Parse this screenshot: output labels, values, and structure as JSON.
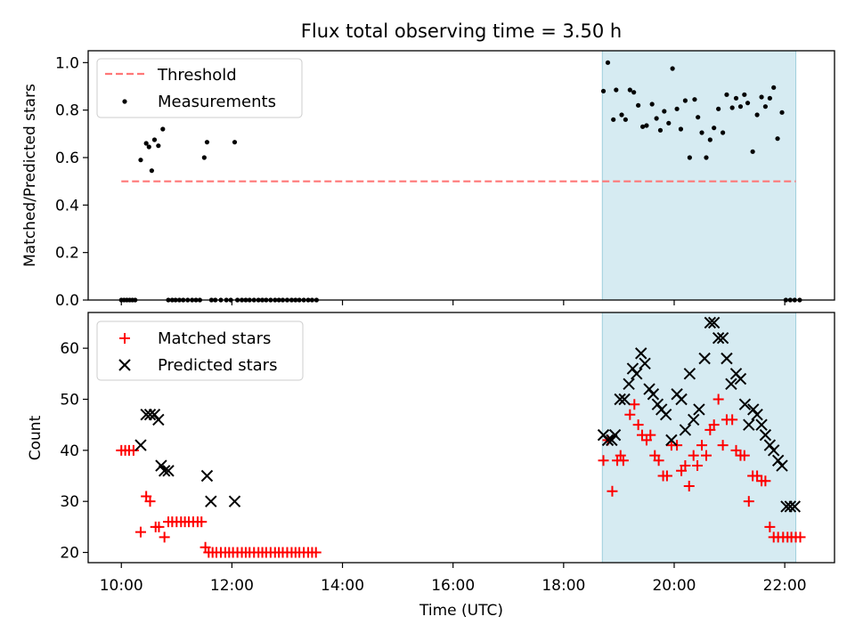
{
  "chart_data": {
    "type": "scatter",
    "title": "Flux total observing time = 3.50 h",
    "xlabel": "Time (UTC)",
    "x_unit": "hours UTC",
    "xlim": [
      9.4,
      22.9
    ],
    "x_ticks": [
      10,
      12,
      14,
      16,
      18,
      20,
      22
    ],
    "x_tick_labels": [
      "10:00",
      "12:00",
      "14:00",
      "16:00",
      "18:00",
      "20:00",
      "22:00"
    ],
    "highlight_span": {
      "x": [
        18.7,
        22.2
      ],
      "color": "#add8e6"
    },
    "panels": [
      {
        "ylabel": "Matched/Predicted stars",
        "ylim": [
          0,
          1.05
        ],
        "y_ticks": [
          0.0,
          0.2,
          0.4,
          0.6,
          0.8,
          1.0
        ],
        "y_tick_labels": [
          "0.0",
          "0.2",
          "0.4",
          "0.6",
          "0.8",
          "1.0"
        ],
        "legend_position": "upper-left",
        "series": [
          {
            "name": "Threshold",
            "kind": "dashed-line",
            "color": "#ff7777",
            "x": [
              10.0,
              22.2
            ],
            "y": [
              0.5,
              0.5
            ]
          },
          {
            "name": "Measurements",
            "kind": "dot",
            "color": "#000000",
            "x": [
              10.0,
              10.05,
              10.1,
              10.15,
              10.2,
              10.25,
              10.35,
              10.45,
              10.5,
              10.55,
              10.6,
              10.67,
              10.75,
              10.85,
              10.92,
              10.98,
              11.05,
              11.12,
              11.2,
              11.28,
              11.35,
              11.42,
              11.5,
              11.55,
              11.63,
              11.7,
              11.8,
              11.9,
              11.98,
              12.05,
              12.1,
              12.18,
              12.25,
              12.32,
              12.4,
              12.48,
              12.55,
              12.62,
              12.7,
              12.78,
              12.85,
              12.92,
              13.0,
              13.08,
              13.15,
              13.22,
              13.3,
              13.38,
              13.45,
              13.53,
              18.72,
              18.8,
              18.9,
              18.95,
              19.05,
              19.12,
              19.2,
              19.27,
              19.35,
              19.43,
              19.5,
              19.6,
              19.68,
              19.75,
              19.82,
              19.9,
              19.97,
              20.05,
              20.12,
              20.2,
              20.28,
              20.37,
              20.43,
              20.5,
              20.58,
              20.65,
              20.72,
              20.8,
              20.88,
              20.95,
              21.05,
              21.12,
              21.2,
              21.27,
              21.33,
              21.42,
              21.5,
              21.58,
              21.65,
              21.73,
              21.8,
              21.87,
              21.95,
              22.02,
              22.1,
              22.18,
              22.27
            ],
            "y": [
              0,
              0,
              0,
              0,
              0,
              0,
              0.59,
              0.66,
              0.645,
              0.545,
              0.675,
              0.65,
              0.72,
              0,
              0,
              0,
              0,
              0,
              0,
              0,
              0,
              0,
              0.6,
              0.665,
              0,
              0,
              0,
              0,
              0,
              0.665,
              0,
              0,
              0,
              0,
              0,
              0,
              0,
              0,
              0,
              0,
              0,
              0,
              0,
              0,
              0,
              0,
              0,
              0,
              0,
              0,
              0.88,
              1.0,
              0.76,
              0.885,
              0.78,
              0.76,
              0.885,
              0.875,
              0.82,
              0.73,
              0.735,
              0.825,
              0.765,
              0.715,
              0.795,
              0.745,
              0.975,
              0.805,
              0.72,
              0.84,
              0.6,
              0.845,
              0.77,
              0.705,
              0.6,
              0.675,
              0.725,
              0.805,
              0.705,
              0.865,
              0.81,
              0.85,
              0.815,
              0.865,
              0.83,
              0.625,
              0.78,
              0.855,
              0.815,
              0.85,
              0.895,
              0.68,
              0.79,
              0.0,
              0.0,
              0.0,
              0.0
            ]
          }
        ]
      },
      {
        "ylabel": "Count",
        "ylim": [
          18,
          67
        ],
        "y_ticks": [
          20,
          30,
          40,
          50,
          60
        ],
        "y_tick_labels": [
          "20",
          "30",
          "40",
          "50",
          "60"
        ],
        "legend_position": "upper-left",
        "series": [
          {
            "name": "Matched stars",
            "kind": "plus",
            "color": "#ff0000",
            "x": [
              10.0,
              10.07,
              10.14,
              10.22,
              10.35,
              10.45,
              10.52,
              10.62,
              10.68,
              10.78,
              10.85,
              10.92,
              11.0,
              11.08,
              11.15,
              11.22,
              11.3,
              11.38,
              11.45,
              11.52,
              11.58,
              11.65,
              11.72,
              11.8,
              11.88,
              11.95,
              12.02,
              12.1,
              12.18,
              12.25,
              12.32,
              12.4,
              12.48,
              12.55,
              12.62,
              12.7,
              12.78,
              12.85,
              12.92,
              13.0,
              13.08,
              13.15,
              13.22,
              13.3,
              13.38,
              13.45,
              13.52,
              18.72,
              18.8,
              18.88,
              18.97,
              19.03,
              19.08,
              19.2,
              19.28,
              19.35,
              19.42,
              19.5,
              19.57,
              19.65,
              19.72,
              19.8,
              19.87,
              19.95,
              20.05,
              20.13,
              20.2,
              20.27,
              20.35,
              20.42,
              20.5,
              20.58,
              20.65,
              20.72,
              20.8,
              20.88,
              20.95,
              21.05,
              21.12,
              21.2,
              21.27,
              21.35,
              21.42,
              21.5,
              21.58,
              21.65,
              21.73,
              21.8,
              21.88,
              21.97,
              22.05,
              22.12,
              22.2,
              22.28
            ],
            "y": [
              40,
              40,
              40,
              40,
              24,
              31,
              30,
              25,
              25,
              23,
              26,
              26,
              26,
              26,
              26,
              26,
              26,
              26,
              26,
              21,
              20,
              20,
              20,
              20,
              20,
              20,
              20,
              20,
              20,
              20,
              20,
              20,
              20,
              20,
              20,
              20,
              20,
              20,
              20,
              20,
              20,
              20,
              20,
              20,
              20,
              20,
              20,
              38,
              42,
              32,
              38,
              39,
              38,
              47,
              49,
              45,
              43,
              42,
              43,
              39,
              38,
              35,
              35,
              41,
              41,
              36,
              37,
              33,
              39,
              37,
              41,
              39,
              44,
              45,
              50,
              41,
              46,
              46,
              40,
              39,
              39,
              30,
              35,
              35,
              34,
              34,
              25,
              23,
              23,
              23,
              23,
              23,
              23,
              23
            ]
          },
          {
            "name": "Predicted stars",
            "kind": "cross",
            "color": "#000000",
            "x": [
              10.35,
              10.45,
              10.52,
              10.6,
              10.67,
              10.72,
              10.78,
              10.85,
              11.55,
              11.62,
              12.05,
              18.72,
              18.8,
              18.87,
              18.93,
              19.02,
              19.1,
              19.18,
              19.25,
              19.32,
              19.4,
              19.47,
              19.55,
              19.62,
              19.7,
              19.77,
              19.85,
              19.95,
              20.05,
              20.13,
              20.2,
              20.28,
              20.35,
              20.45,
              20.55,
              20.65,
              20.72,
              20.8,
              20.88,
              20.95,
              21.03,
              21.12,
              21.2,
              21.28,
              21.35,
              21.43,
              21.5,
              21.58,
              21.65,
              21.73,
              21.8,
              21.88,
              21.95,
              22.03,
              22.1,
              22.18
            ],
            "y": [
              41,
              47,
              47,
              47,
              46,
              37,
              36,
              36,
              35,
              30,
              30,
              43,
              42,
              42,
              43,
              50,
              50,
              53,
              56,
              55,
              59,
              57,
              52,
              51,
              49,
              48,
              47,
              42,
              51,
              50,
              44,
              55,
              46,
              48,
              58,
              65,
              65,
              62,
              62,
              58,
              53,
              55,
              54,
              49,
              45,
              48,
              47,
              45,
              43,
              41,
              40,
              38,
              37,
              29,
              29,
              29
            ]
          }
        ]
      }
    ]
  }
}
